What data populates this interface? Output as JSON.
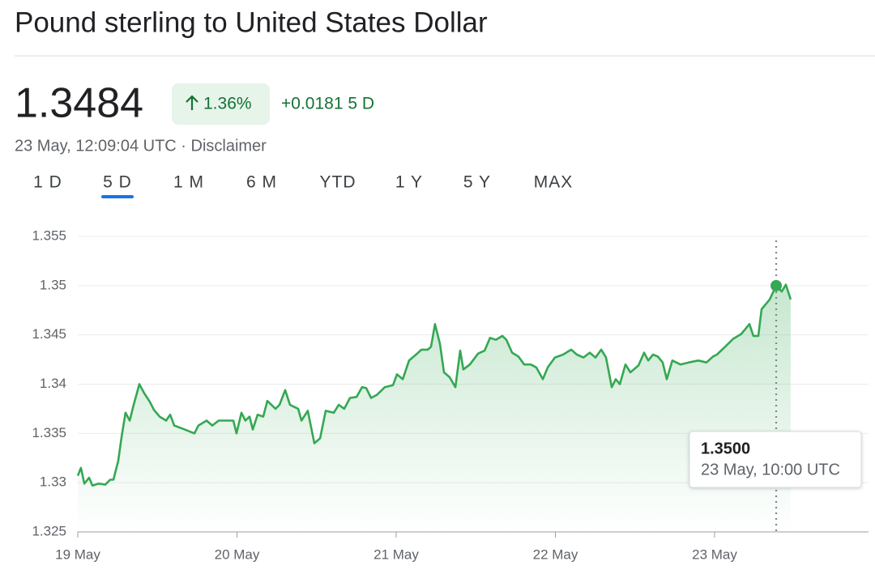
{
  "header": {
    "title": "Pound sterling to United States Dollar",
    "price": "1.3484",
    "change_percent": "1.36%",
    "change": "+0.0181 5 D",
    "timestamp": "23 May, 12:09:04 UTC · Disclaimer",
    "tabs": [
      "1 D",
      "5 D",
      "1 M",
      "6 M",
      "YTD",
      "1 Y",
      "5 Y",
      "MAX"
    ],
    "selected_tab": 1
  },
  "chart_data": {
    "type": "line",
    "color": "#34a853",
    "grid": true,
    "xlim": [
      0,
      5
    ],
    "xticks": [
      {
        "value": 0,
        "label": "19 May"
      },
      {
        "value": 1,
        "label": "20 May"
      },
      {
        "value": 2,
        "label": "21 May"
      },
      {
        "value": 3,
        "label": "22 May"
      },
      {
        "value": 4,
        "label": "23 May"
      }
    ],
    "ylim": [
      1.325,
      1.355
    ],
    "yticks": [
      1.325,
      1.33,
      1.335,
      1.34,
      1.345,
      1.35,
      1.355
    ],
    "series": [
      {
        "name": "GBP/USD",
        "color": "#34a853",
        "x": [
          0,
          0.02,
          0.041,
          0.071,
          0.092,
          0.132,
          0.173,
          0.204,
          0.224,
          0.254,
          0.275,
          0.3,
          0.326,
          0.351,
          0.387,
          0.417,
          0.453,
          0.478,
          0.514,
          0.555,
          0.58,
          0.606,
          0.656,
          0.733,
          0.758,
          0.809,
          0.845,
          0.885,
          0.977,
          0.997,
          1.028,
          1.053,
          1.079,
          1.099,
          1.13,
          1.165,
          1.191,
          1.242,
          1.267,
          1.303,
          1.333,
          1.384,
          1.405,
          1.445,
          1.486,
          1.522,
          1.557,
          1.608,
          1.639,
          1.674,
          1.71,
          1.751,
          1.786,
          1.812,
          1.842,
          1.878,
          1.929,
          1.98,
          2.005,
          2.041,
          2.081,
          2.132,
          2.158,
          2.198,
          2.219,
          2.244,
          2.275,
          2.3,
          2.336,
          2.372,
          2.402,
          2.422,
          2.463,
          2.514,
          2.555,
          2.59,
          2.626,
          2.667,
          2.692,
          2.728,
          2.768,
          2.804,
          2.845,
          2.88,
          2.921,
          2.952,
          2.997,
          3.048,
          3.099,
          3.135,
          3.176,
          3.216,
          3.252,
          3.288,
          3.318,
          3.354,
          3.379,
          3.405,
          3.44,
          3.471,
          3.522,
          3.557,
          3.583,
          3.613,
          3.644,
          3.674,
          3.7,
          3.735,
          3.786,
          3.837,
          3.898,
          3.949,
          3.99,
          4.015,
          4.066,
          4.117,
          4.168,
          4.219,
          4.244,
          4.275,
          4.295,
          4.346,
          4.387,
          4.422,
          4.448,
          4.478
        ],
        "values": [
          1.3307,
          1.3315,
          1.3299,
          1.3305,
          1.3297,
          1.3299,
          1.3298,
          1.3303,
          1.3303,
          1.3322,
          1.3346,
          1.3371,
          1.3363,
          1.3379,
          1.34,
          1.3391,
          1.3382,
          1.3374,
          1.3367,
          1.3363,
          1.3369,
          1.3358,
          1.3355,
          1.335,
          1.3358,
          1.3363,
          1.3358,
          1.3363,
          1.3363,
          1.335,
          1.3371,
          1.3363,
          1.3367,
          1.3354,
          1.3369,
          1.3367,
          1.3383,
          1.3375,
          1.3379,
          1.3394,
          1.3379,
          1.3375,
          1.3363,
          1.3373,
          1.334,
          1.3345,
          1.3373,
          1.3371,
          1.3379,
          1.3375,
          1.3386,
          1.3387,
          1.3397,
          1.3396,
          1.3386,
          1.3389,
          1.3397,
          1.3399,
          1.341,
          1.3405,
          1.3424,
          1.3431,
          1.3435,
          1.3435,
          1.3438,
          1.3461,
          1.3441,
          1.3412,
          1.3407,
          1.3397,
          1.3434,
          1.3415,
          1.342,
          1.3431,
          1.3434,
          1.3447,
          1.3445,
          1.3449,
          1.3445,
          1.3432,
          1.3428,
          1.342,
          1.342,
          1.3417,
          1.3405,
          1.3417,
          1.3427,
          1.343,
          1.3435,
          1.343,
          1.3427,
          1.3432,
          1.3427,
          1.3435,
          1.3427,
          1.3397,
          1.3405,
          1.34,
          1.342,
          1.3412,
          1.3419,
          1.3432,
          1.3424,
          1.343,
          1.3428,
          1.3422,
          1.3405,
          1.3424,
          1.342,
          1.3422,
          1.3424,
          1.3422,
          1.3428,
          1.343,
          1.3438,
          1.3446,
          1.3451,
          1.3461,
          1.3449,
          1.3449,
          1.3476,
          1.3486,
          1.35,
          1.3494,
          1.3501,
          1.3486
        ]
      }
    ],
    "tooltip": {
      "x": 4.387,
      "value": 1.35,
      "value_label": "1.3500",
      "time": "23 May, 10:00 UTC"
    }
  }
}
